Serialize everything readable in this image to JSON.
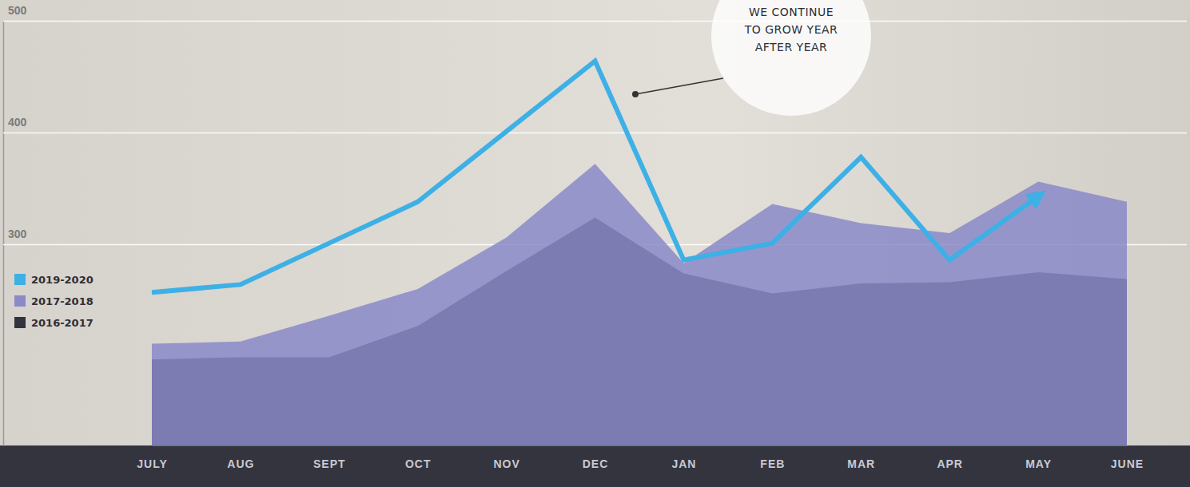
{
  "chart_data": {
    "type": "area",
    "annotation": "WE CONTINUE TO GROW YEAR AFTER YEAR",
    "categories": [
      "JULY",
      "AUG",
      "SEPT",
      "OCT",
      "NOV",
      "DEC",
      "JAN",
      "FEB",
      "MAR",
      "APR",
      "MAY",
      "JUNE"
    ],
    "series": [
      {
        "name": "2019-2020",
        "type": "line",
        "color": "#3db0e6",
        "marker": "arrow",
        "values": [
          257,
          264,
          301,
          338,
          401,
          464,
          286,
          301,
          378,
          286,
          343,
          null
        ]
      },
      {
        "name": "2017-2018",
        "type": "area",
        "color": "#8a8ac8",
        "values": [
          211,
          213,
          236,
          260,
          306,
          372,
          283,
          336,
          319,
          310,
          356,
          338
        ]
      },
      {
        "name": "2016-2017",
        "type": "area",
        "color": "#33333f",
        "values": [
          197,
          199,
          199,
          227,
          276,
          324,
          274,
          256,
          265,
          266,
          275,
          269
        ]
      }
    ],
    "ylim": [
      120,
      500
    ],
    "yticks": [
      300,
      400,
      500
    ],
    "grid": true,
    "legend": "left"
  }
}
